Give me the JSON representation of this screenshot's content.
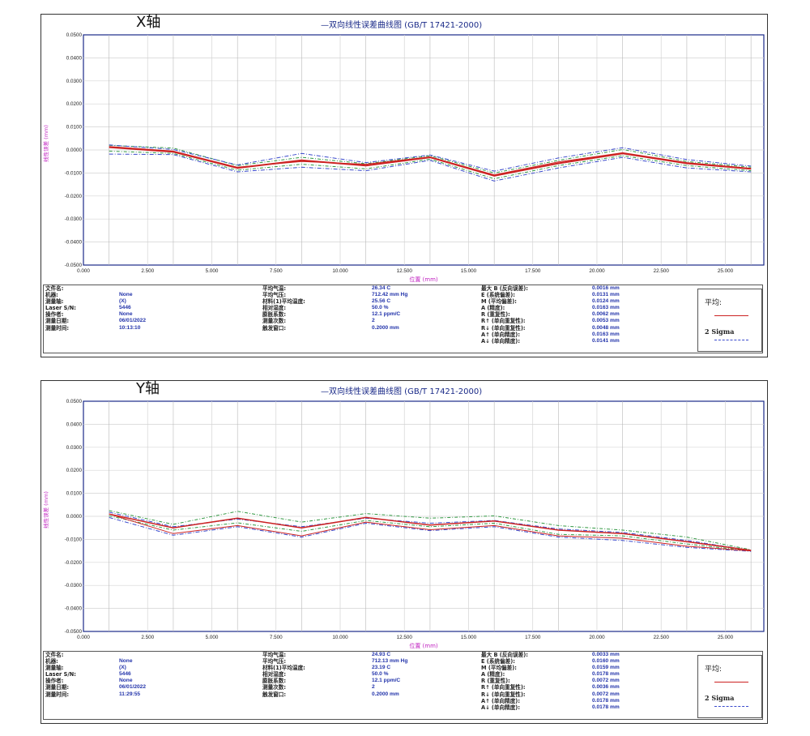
{
  "chart_data": [
    {
      "type": "line",
      "axis_tag": "X轴",
      "title": "—双向线性误差曲线图  (GB/T 17421-2000)",
      "xlabel": "位置  (mm)",
      "ylabel": "线性误差 (mm)",
      "xlim": [
        0,
        26.5
      ],
      "ylim": [
        -0.05,
        0.05
      ],
      "x_ticks": [
        "0.000",
        "2.500",
        "5.000",
        "7.500",
        "10.000",
        "12.500",
        "15.000",
        "17.500",
        "20.000",
        "22.500",
        "25.000"
      ],
      "y_ticks": [
        "0.0500",
        "0.0400",
        "0.0300",
        "0.0200",
        "0.0100",
        "0.0000",
        "-0.0100",
        "-0.0200",
        "-0.0300",
        "-0.0400",
        "-0.0500"
      ],
      "x": [
        1.0,
        3.5,
        6.0,
        8.5,
        11.0,
        13.5,
        16.0,
        18.5,
        21.0,
        23.5,
        26.0
      ],
      "series": [
        {
          "name": "平均",
          "color": "#cc2222",
          "dash": "",
          "width": 2,
          "values": [
            0.0012,
            -0.0008,
            -0.0078,
            -0.0045,
            -0.0068,
            -0.0032,
            -0.0112,
            -0.0058,
            -0.0015,
            -0.0058,
            -0.0082
          ]
        },
        {
          "color": "#cc2222",
          "dash": "",
          "width": 1,
          "values": [
            0.0015,
            -0.0005,
            -0.0075,
            -0.005,
            -0.0062,
            -0.003,
            -0.0108,
            -0.0052,
            -0.0012,
            -0.0055,
            -0.008
          ]
        },
        {
          "color": "#3a4acc",
          "dash": "5,2,1,2",
          "width": 1,
          "values": [
            0.0022,
            0.0002,
            -0.0065,
            -0.0015,
            -0.0055,
            -0.0022,
            -0.0092,
            -0.0035,
            0.001,
            -0.0042,
            -0.007
          ]
        },
        {
          "color": "#3a4acc",
          "dash": "5,2,1,2",
          "width": 1,
          "values": [
            -0.0018,
            -0.002,
            -0.0095,
            -0.0075,
            -0.009,
            -0.0045,
            -0.0135,
            -0.0078,
            -0.0032,
            -0.0078,
            -0.0095
          ]
        },
        {
          "color": "#339944",
          "dash": "4,2,1,2",
          "width": 1,
          "values": [
            0.002,
            0.0008,
            -0.0068,
            -0.0032,
            -0.006,
            -0.0025,
            -0.01,
            -0.0045,
            0.0002,
            -0.005,
            -0.0075
          ]
        },
        {
          "color": "#339944",
          "dash": "4,2,1,2",
          "width": 1,
          "values": [
            -0.0005,
            -0.0015,
            -0.0088,
            -0.0062,
            -0.0082,
            -0.004,
            -0.0125,
            -0.0068,
            -0.0025,
            -0.0068,
            -0.009
          ]
        }
      ]
    },
    {
      "type": "line",
      "axis_tag": "Y轴",
      "title": "—双向线性误差曲线图  (GB/T 17421-2000)",
      "xlabel": "位置  (mm)",
      "ylabel": "线性误差 (mm)",
      "xlim": [
        0,
        26.5
      ],
      "ylim": [
        -0.05,
        0.05
      ],
      "x_ticks": [
        "0.000",
        "2.500",
        "5.000",
        "7.500",
        "10.000",
        "12.500",
        "15.000",
        "17.500",
        "20.000",
        "22.500",
        "25.000"
      ],
      "y_ticks": [
        "0.0500",
        "0.0400",
        "0.0300",
        "0.0200",
        "0.0100",
        "0.0000",
        "-0.0100",
        "-0.0200",
        "-0.0300",
        "-0.0400",
        "-0.0500"
      ],
      "x": [
        1.0,
        3.5,
        6.0,
        8.5,
        11.0,
        13.5,
        16.0,
        18.5,
        21.0,
        23.5,
        26.0
      ],
      "series": [
        {
          "name": "平均",
          "color": "#cc2222",
          "dash": "",
          "width": 1.5,
          "values": [
            0.001,
            -0.005,
            -0.0008,
            -0.005,
            -0.0005,
            -0.0038,
            -0.002,
            -0.006,
            -0.0075,
            -0.011,
            -0.0148
          ]
        },
        {
          "color": "#cc2222",
          "dash": "",
          "width": 1,
          "values": [
            0.001,
            -0.0075,
            -0.004,
            -0.0085,
            -0.0025,
            -0.0058,
            -0.004,
            -0.0085,
            -0.0095,
            -0.013,
            -0.015
          ]
        },
        {
          "color": "#339944",
          "dash": "4,2,1,2",
          "width": 1,
          "values": [
            0.0025,
            -0.0035,
            0.0022,
            -0.0025,
            0.0012,
            -0.0008,
            0.0002,
            -0.004,
            -0.006,
            -0.009,
            -0.0145
          ]
        },
        {
          "color": "#339944",
          "dash": "4,2,1,2",
          "width": 1,
          "values": [
            0.0002,
            -0.006,
            -0.0028,
            -0.0065,
            -0.0018,
            -0.0045,
            -0.003,
            -0.0078,
            -0.0085,
            -0.012,
            -0.015
          ]
        },
        {
          "color": "#3a4acc",
          "dash": "5,2,1,2",
          "width": 1,
          "values": [
            0.0018,
            -0.0045,
            -0.0012,
            -0.0045,
            -0.0008,
            -0.003,
            -0.0018,
            -0.0055,
            -0.007,
            -0.0105,
            -0.0148
          ]
        },
        {
          "color": "#3a4acc",
          "dash": "5,2,1,2",
          "width": 1,
          "values": [
            -0.0005,
            -0.0082,
            -0.0045,
            -0.009,
            -0.003,
            -0.0062,
            -0.0045,
            -0.009,
            -0.0105,
            -0.0135,
            -0.0152
          ]
        }
      ]
    }
  ],
  "info": [
    {
      "col1": {
        "labels": [
          "文件名:",
          "机器:",
          "测量轴:",
          "Laser S/N:",
          "操作者:",
          "测量日期:",
          "测量时间:"
        ],
        "values": [
          "",
          "None",
          "(X)",
          "5446",
          "None",
          "06/01/2022",
          "10:13:10"
        ]
      },
      "col2": {
        "labels": [
          "平均气温:",
          "平均气压:",
          "材料(1)平均温度:",
          "相对湿度:",
          "膨胀系数:",
          "测量次数:",
          "触发窗口:"
        ],
        "values": [
          "26.34 C",
          "712.42 mm Hg",
          "25.56 C",
          "50.0 %",
          "12.1 ppm/C",
          "2",
          "0.2000 mm"
        ]
      },
      "col3": {
        "labels": [
          "最大 B (反向误差):",
          "E (系统偏差):",
          "M (平均偏差):",
          "A (精度):",
          "R (重复性):",
          "R↑ (单向重复性):",
          "R↓ (单向重复性):",
          "A↑ (单向精度):",
          "A↓ (单向精度):"
        ],
        "values": [
          "0.0016 mm",
          "0.0131 mm",
          "0.0124 mm",
          "0.0163 mm",
          "0.0062 mm",
          "0.0053 mm",
          "0.0048 mm",
          "0.0163 mm",
          "0.0141 mm"
        ]
      }
    },
    {
      "col1": {
        "labels": [
          "文件名:",
          "机器:",
          "测量轴:",
          "Laser S/N:",
          "操作者:",
          "测量日期:",
          "测量时间:"
        ],
        "values": [
          "",
          "None",
          "(X)",
          "5446",
          "None",
          "06/01/2022",
          "11:29:55"
        ]
      },
      "col2": {
        "labels": [
          "平均气温:",
          "平均气压:",
          "材料(1)平均温度:",
          "相对湿度:",
          "膨胀系数:",
          "测量次数:",
          "触发窗口:"
        ],
        "values": [
          "24.93 C",
          "712.13 mm Hg",
          "23.19 C",
          "50.0 %",
          "12.1 ppm/C",
          "2",
          "0.2000 mm"
        ]
      },
      "col3": {
        "labels": [
          "最大 B (反向误差):",
          "E (系统偏差):",
          "M (平均偏差):",
          "A (精度):",
          "R (重复性):",
          "R↑ (单向重复性):",
          "R↓ (单向重复性):",
          "A↑ (单向精度):",
          "A↓ (单向精度):"
        ],
        "values": [
          "0.0033 mm",
          "0.0160 mm",
          "0.0159 mm",
          "0.0178 mm",
          "0.0072 mm",
          "0.0036 mm",
          "0.0072 mm",
          "0.0178 mm",
          "0.0178 mm"
        ]
      }
    }
  ],
  "legend": {
    "avg": "平均:",
    "sigma": "2 Sigma"
  }
}
